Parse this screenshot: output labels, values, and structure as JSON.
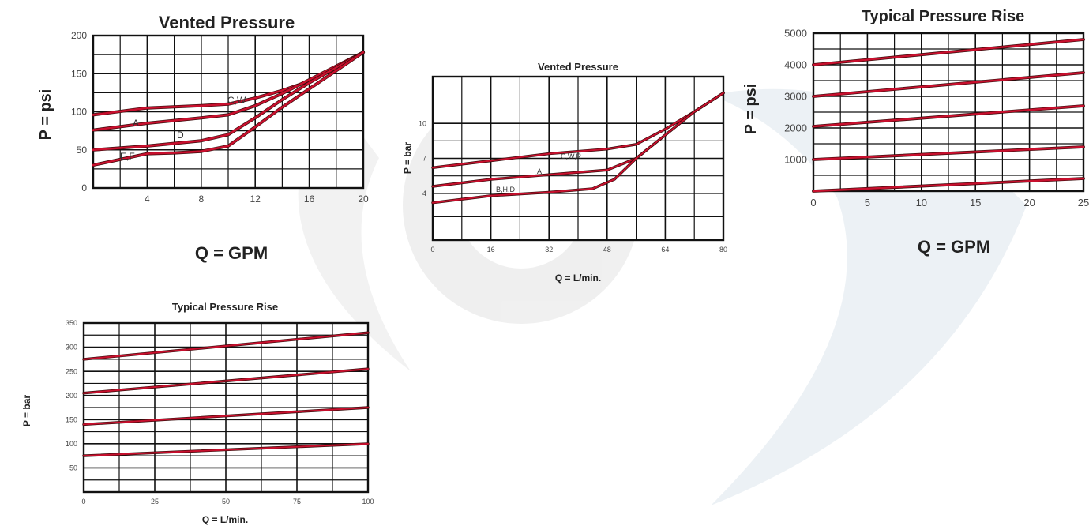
{
  "chart_data": [
    {
      "type": "line",
      "title": "Vented Pressure",
      "xlabel": "Q = GPM",
      "ylabel": "P = psi",
      "xlim": [
        0,
        20
      ],
      "ylim": [
        0,
        200
      ],
      "x_ticks": [
        0,
        4,
        8,
        12,
        16,
        20
      ],
      "x_tick_labels": [
        "",
        "4",
        "8",
        "12",
        "16",
        "20"
      ],
      "y_ticks": [
        0,
        50,
        100,
        150,
        200
      ],
      "y_tick_labels": [
        "0",
        "50",
        "100",
        "150",
        "200"
      ],
      "grid": true,
      "series": [
        {
          "x": [
            0,
            4,
            8,
            10,
            12,
            14,
            16,
            18,
            20
          ],
          "y": [
            96,
            105,
            108,
            110,
            118,
            128,
            140,
            158,
            178
          ]
        },
        {
          "x": [
            0,
            4,
            8,
            10,
            12,
            14,
            16,
            18,
            20
          ],
          "y": [
            76,
            85,
            92,
            96,
            108,
            124,
            142,
            160,
            178
          ]
        },
        {
          "x": [
            0,
            4,
            8,
            10,
            12,
            14,
            16,
            18,
            20
          ],
          "y": [
            50,
            55,
            62,
            70,
            92,
            116,
            138,
            158,
            178
          ]
        },
        {
          "x": [
            0,
            4,
            6,
            8,
            10,
            12,
            14,
            16,
            18,
            20
          ],
          "y": [
            30,
            45,
            46,
            48,
            55,
            80,
            106,
            130,
            154,
            178
          ]
        }
      ],
      "annotations": [
        "C,W",
        "A",
        "D",
        "E,F"
      ]
    },
    {
      "type": "line",
      "title": "Vented Pressure",
      "xlabel": "Q = L/min.",
      "ylabel": "P = bar",
      "xlim": [
        0,
        80
      ],
      "ylim": [
        0,
        14
      ],
      "x_ticks": [
        0,
        16,
        32,
        48,
        64,
        80
      ],
      "x_tick_labels": [
        "0",
        "16",
        "32",
        "48",
        "64",
        "80"
      ],
      "y_ticks": [
        0,
        4,
        7,
        10
      ],
      "y_tick_labels": [
        "",
        "4",
        "7",
        "10"
      ],
      "grid": true,
      "series": [
        {
          "x": [
            0,
            16,
            32,
            48,
            56,
            64,
            72,
            80
          ],
          "y": [
            6.2,
            6.8,
            7.4,
            7.8,
            8.2,
            9.5,
            11,
            12.6
          ]
        },
        {
          "x": [
            0,
            16,
            32,
            48,
            56,
            64,
            72,
            80
          ],
          "y": [
            4.6,
            5.2,
            5.6,
            6.0,
            7.0,
            9.0,
            11,
            12.6
          ]
        },
        {
          "x": [
            0,
            16,
            32,
            44,
            50,
            56,
            64,
            72,
            80
          ],
          "y": [
            3.2,
            3.8,
            4.1,
            4.4,
            5.2,
            7.0,
            9.0,
            11,
            12.6
          ]
        }
      ],
      "annotations": [
        "C,W,R",
        "A",
        "B,H,D"
      ]
    },
    {
      "type": "line",
      "title": "Typical Pressure Rise",
      "xlabel": "Q = GPM",
      "ylabel": "P = psi",
      "xlim": [
        0,
        25
      ],
      "ylim": [
        0,
        5000
      ],
      "x_ticks": [
        0,
        5,
        10,
        15,
        20,
        25
      ],
      "x_tick_labels": [
        "0",
        "5",
        "10",
        "15",
        "20",
        "25"
      ],
      "y_ticks": [
        0,
        1000,
        2000,
        3000,
        4000,
        5000
      ],
      "y_tick_labels": [
        "",
        "1000",
        "2000",
        "3000",
        "4000",
        "5000"
      ],
      "grid": true,
      "series": [
        {
          "x": [
            0,
            25
          ],
          "y": [
            4000,
            4800
          ]
        },
        {
          "x": [
            0,
            25
          ],
          "y": [
            3000,
            3750
          ]
        },
        {
          "x": [
            0,
            25
          ],
          "y": [
            2050,
            2700
          ]
        },
        {
          "x": [
            0,
            25
          ],
          "y": [
            1000,
            1400
          ]
        },
        {
          "x": [
            0,
            25
          ],
          "y": [
            0,
            400
          ]
        }
      ]
    },
    {
      "type": "line",
      "title": "Typical Pressure Rise",
      "xlabel": "Q = L/min.",
      "ylabel": "P = bar",
      "xlim": [
        0,
        100
      ],
      "ylim": [
        0,
        350
      ],
      "x_ticks": [
        0,
        25,
        50,
        75,
        100
      ],
      "x_tick_labels": [
        "0",
        "25",
        "50",
        "75",
        "100"
      ],
      "y_ticks": [
        0,
        50,
        100,
        150,
        200,
        250,
        300,
        350
      ],
      "y_tick_labels": [
        "",
        "50",
        "100",
        "150",
        "200",
        "250",
        "300",
        "350"
      ],
      "grid": true,
      "series": [
        {
          "x": [
            0,
            100
          ],
          "y": [
            275,
            330
          ]
        },
        {
          "x": [
            0,
            100
          ],
          "y": [
            205,
            255
          ]
        },
        {
          "x": [
            0,
            100
          ],
          "y": [
            140,
            175
          ]
        },
        {
          "x": [
            0,
            100
          ],
          "y": [
            75,
            100
          ]
        }
      ]
    }
  ]
}
